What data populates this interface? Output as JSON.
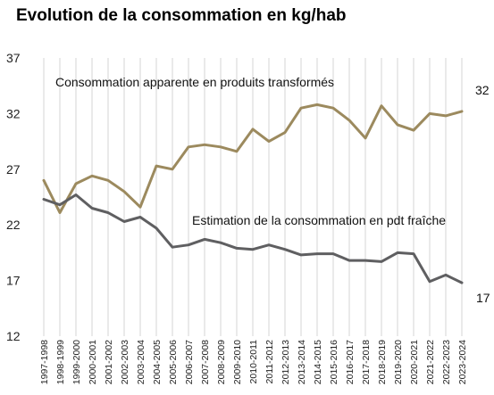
{
  "chart_data": {
    "type": "line",
    "title": "Evolution de la consommation en kg/hab",
    "xlabel": "",
    "ylabel": "",
    "ylim": [
      12,
      37
    ],
    "yticks": [
      12,
      17,
      22,
      27,
      32,
      37
    ],
    "grid": "vertical",
    "legend": "none",
    "categories": [
      "1997-1998",
      "1998-1999",
      "1999-2000",
      "2000-2001",
      "2001-2002",
      "2002-2003",
      "2003-2004",
      "2004-2005",
      "2005-2006",
      "2006-2007",
      "2007-2008",
      "2008-2009",
      "2009-2010",
      "2010-2011",
      "2011-2012",
      "2012-2013",
      "2013-2014",
      "2014-2015",
      "2015-2016",
      "2016-2017",
      "2017-2018",
      "2018-2019",
      "2019-2020",
      "2020-2021",
      "2021-2022",
      "2022-2023",
      "2023-2024"
    ],
    "series": [
      {
        "name": "Consommation apparente en produits transformés",
        "color": "#9c8a5e",
        "values": [
          26.0,
          23.1,
          25.7,
          26.4,
          26.0,
          25.0,
          23.6,
          27.3,
          27.0,
          29.0,
          29.2,
          29.0,
          28.6,
          30.6,
          29.5,
          30.3,
          32.5,
          32.8,
          32.5,
          31.4,
          29.8,
          32.7,
          31.0,
          30.5,
          32.0,
          31.8,
          32.2
        ],
        "end_label": "32"
      },
      {
        "name": "Estimation de la consommation en pdt fraîche",
        "color": "#5f5f61",
        "values": [
          24.3,
          23.8,
          24.7,
          23.5,
          23.1,
          22.3,
          22.7,
          21.7,
          20.0,
          20.2,
          20.7,
          20.4,
          19.9,
          19.8,
          20.2,
          19.8,
          19.3,
          19.4,
          19.4,
          18.8,
          18.8,
          18.7,
          19.5,
          19.4,
          16.9,
          17.5,
          16.8
        ],
        "end_label": "17"
      }
    ]
  }
}
